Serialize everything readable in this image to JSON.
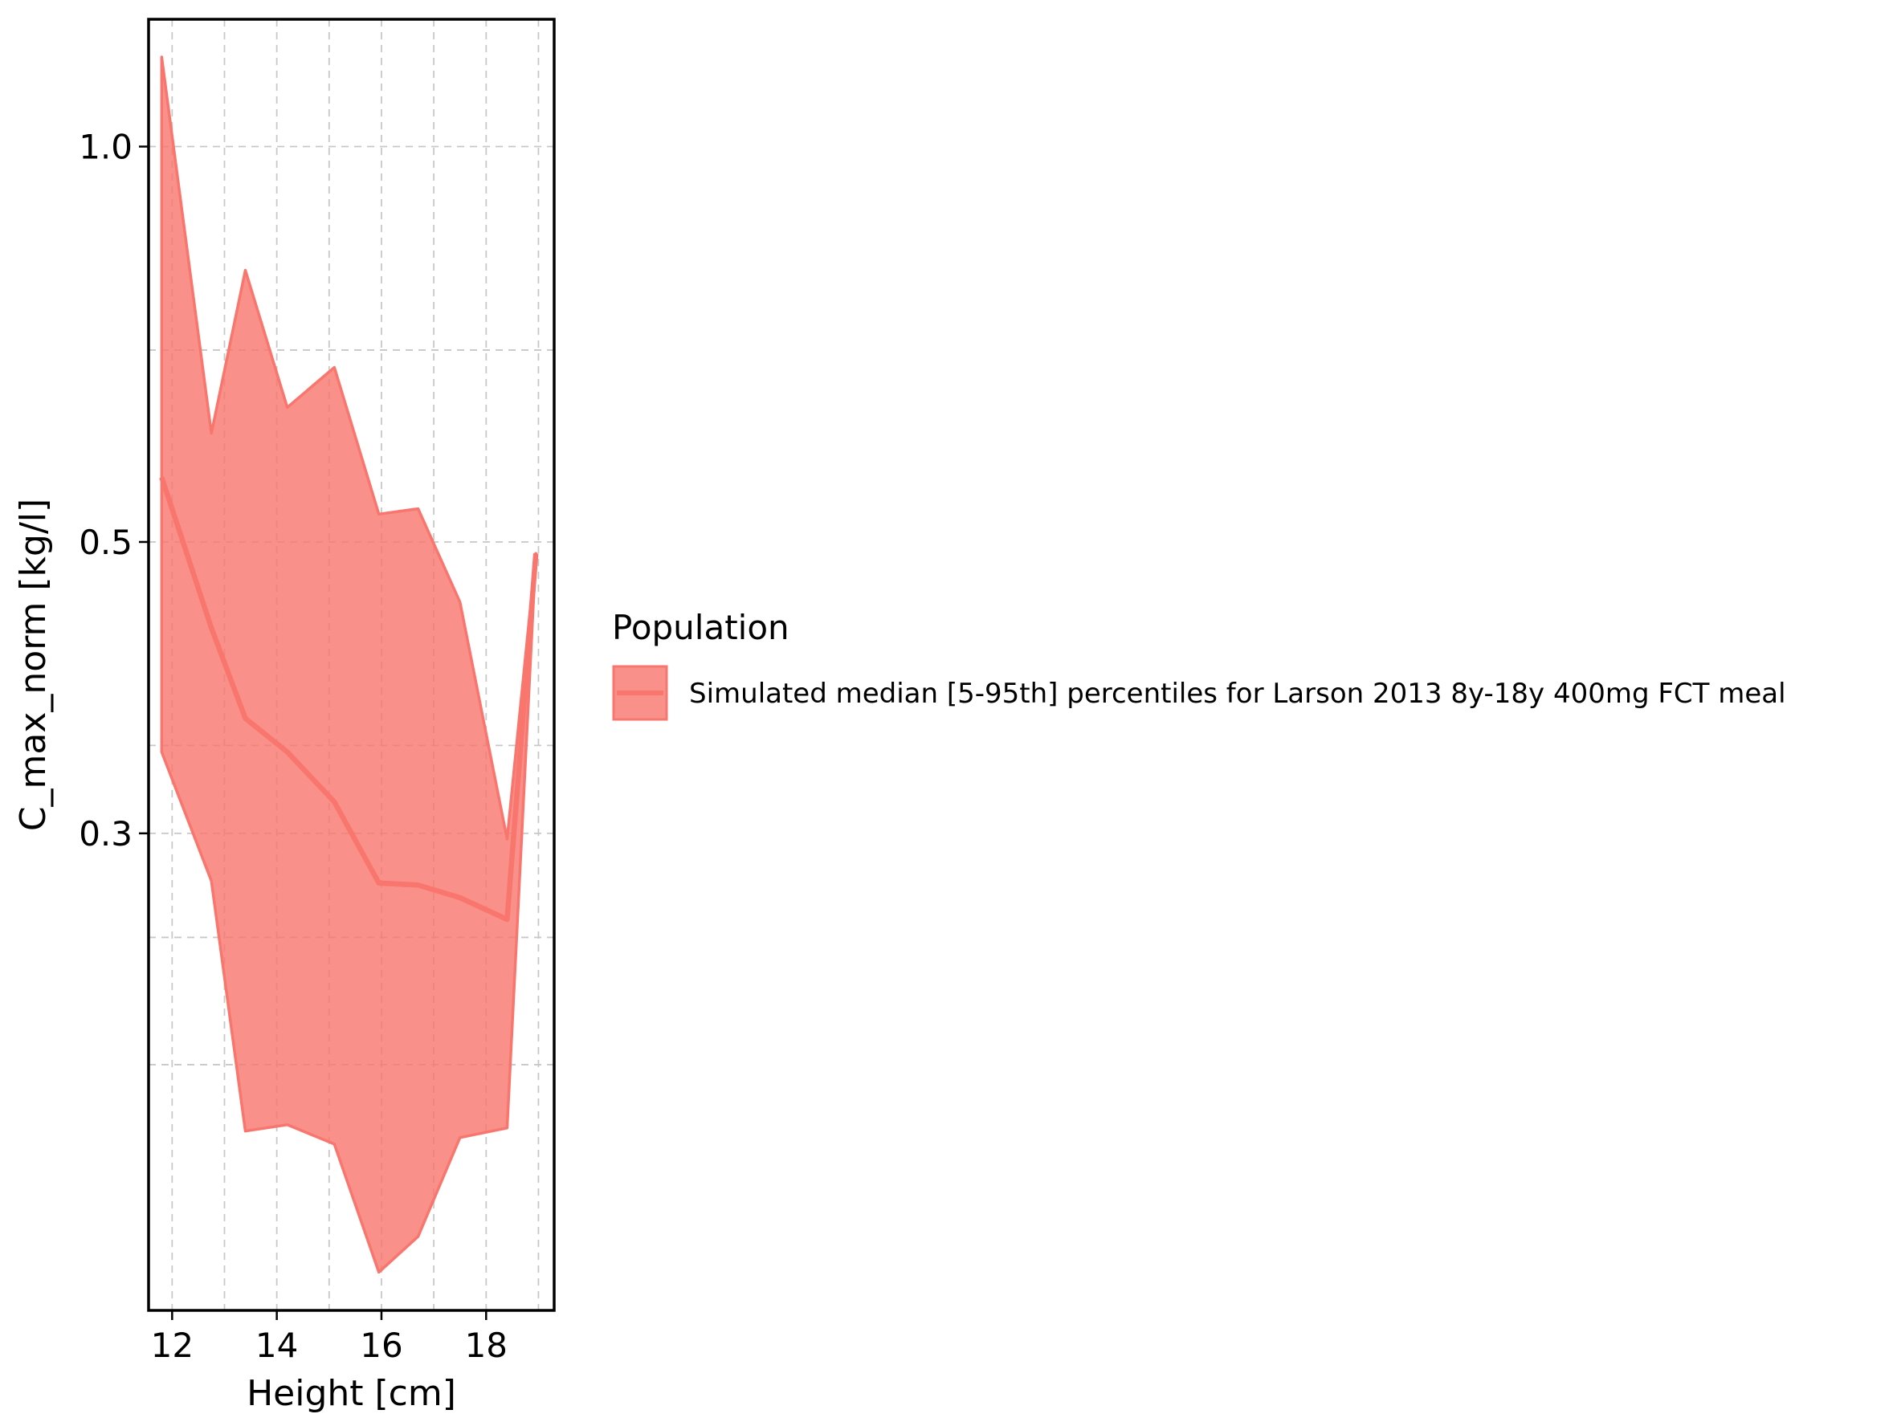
{
  "chart_data": {
    "type": "area",
    "xlabel": "Height [cm]",
    "ylabel": "C_max_norm [kg/l]",
    "xlim": [
      11.55,
      19.3
    ],
    "ylim": [
      0.13,
      1.25
    ],
    "yscale": "log",
    "x_ticks": [
      12,
      14,
      16,
      18
    ],
    "x_tick_labels": [
      "12",
      "14",
      "16",
      "18"
    ],
    "x_minor_grid": [
      13,
      15,
      17,
      19
    ],
    "y_ticks": [
      0.3,
      0.5,
      1.0
    ],
    "y_tick_labels": [
      "0.3",
      "0.5",
      "1.0"
    ],
    "y_minor_grid": [
      0.2,
      0.25,
      0.35,
      0.7
    ],
    "grid": true,
    "legend": {
      "title": "Population",
      "placement": "right",
      "entries": [
        "Simulated median [5-95th] percentiles for Larson 2013 8y-18y 400mg FCT meal"
      ]
    },
    "series": [
      {
        "name": "Simulated median [5-95th] percentiles for Larson 2013 8y-18y 400mg FCT meal",
        "color": "#f8766d",
        "x": [
          11.8,
          12.75,
          13.4,
          14.2,
          15.1,
          15.95,
          16.7,
          17.5,
          18.4,
          18.95
        ],
        "median": [
          0.56,
          0.43,
          0.367,
          0.346,
          0.317,
          0.275,
          0.274,
          0.268,
          0.258,
          0.49
        ],
        "lower": [
          0.346,
          0.276,
          0.178,
          0.18,
          0.174,
          0.139,
          0.148,
          0.176,
          0.179,
          0.49
        ],
        "upper": [
          1.17,
          0.605,
          0.805,
          0.633,
          0.679,
          0.525,
          0.53,
          0.45,
          0.297,
          0.49
        ]
      }
    ]
  }
}
